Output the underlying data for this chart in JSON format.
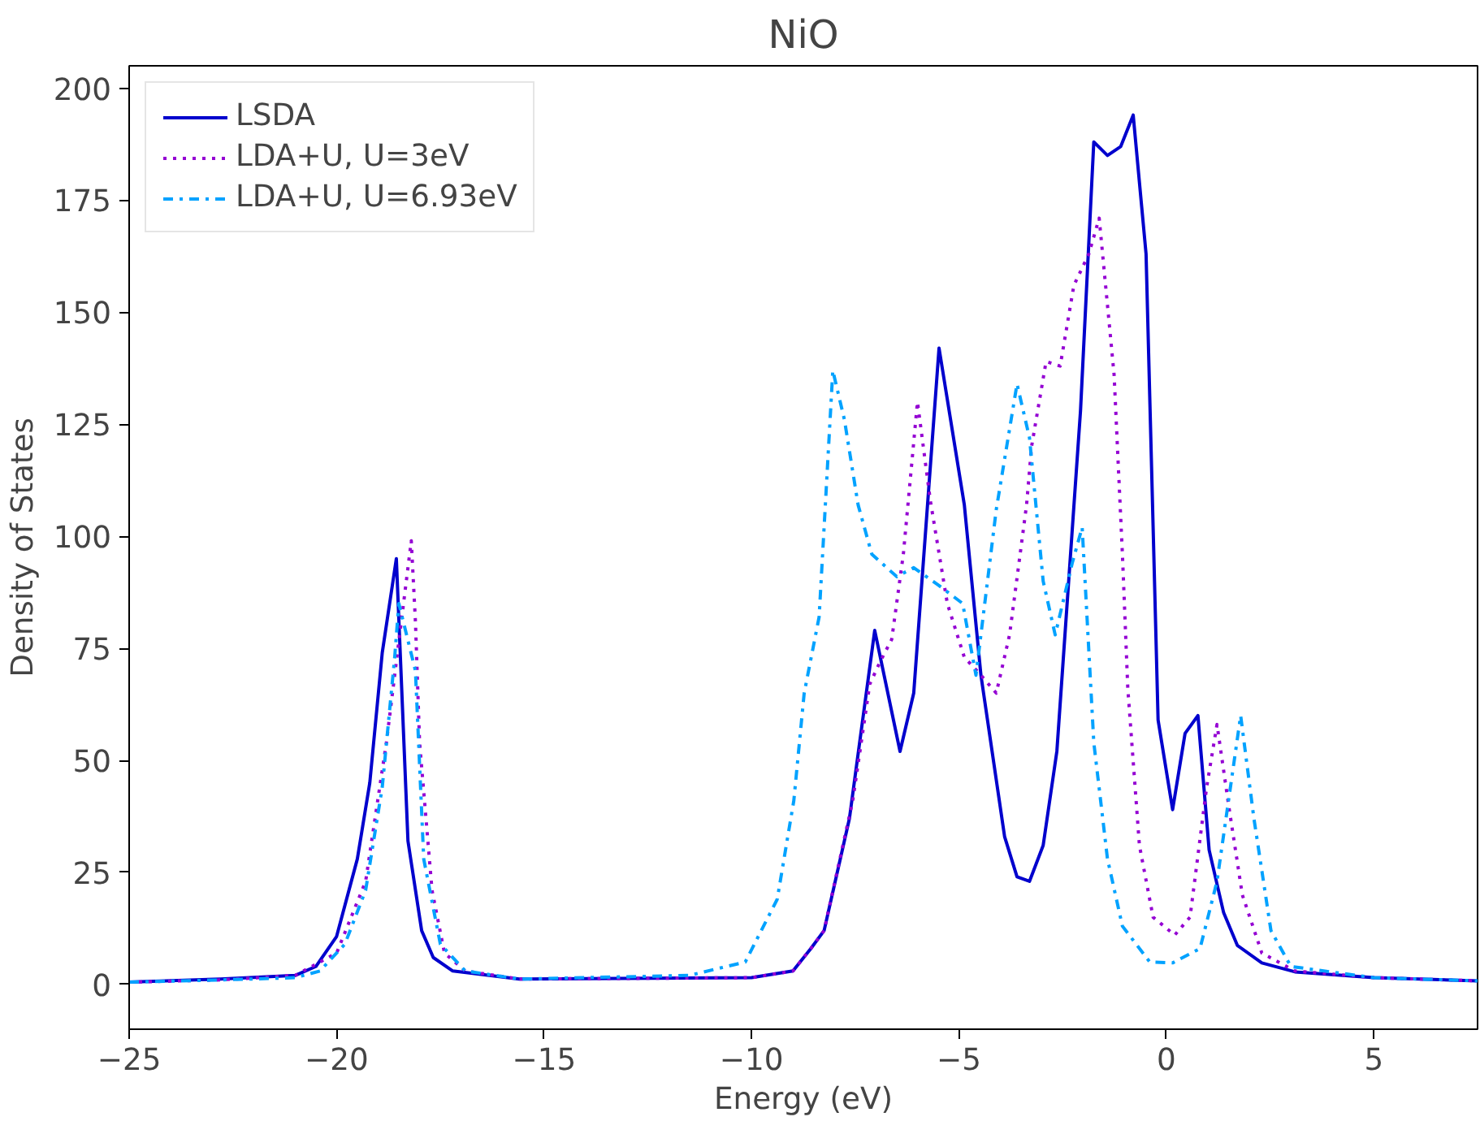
{
  "chart_data": {
    "type": "line",
    "title": "NiO",
    "xlabel": "Energy (eV)",
    "ylabel": "Density of States",
    "xlim": [
      -25,
      7.5
    ],
    "ylim": [
      -10,
      205
    ],
    "xticks": [
      -25,
      -20,
      -15,
      -10,
      -5,
      0,
      5
    ],
    "yticks": [
      0,
      25,
      50,
      75,
      100,
      125,
      150,
      175,
      200
    ],
    "grid": false,
    "legend": "top left",
    "marker": "none",
    "series": [
      {
        "name": "LSDA",
        "color": "#0000cd",
        "line_style": "solid",
        "x": [
          -25,
          -22.8,
          -21,
          -20.5,
          -20.0,
          -19.5,
          -19.2,
          -18.9,
          -18.56,
          -18.28,
          -17.95,
          -17.67,
          -17.2,
          -15.6,
          -10,
          -9,
          -8.57,
          -8.25,
          -7.64,
          -7.03,
          -6.42,
          -6.09,
          -5.48,
          -4.87,
          -4.47,
          -3.9,
          -3.6,
          -3.3,
          -2.97,
          -2.64,
          -2.07,
          -1.75,
          -1.42,
          -1.1,
          -0.8,
          -0.49,
          -0.2,
          0.15,
          0.45,
          0.76,
          1.03,
          1.38,
          1.71,
          2.3,
          3.1,
          5,
          7.5
        ],
        "values": [
          0.5,
          1.2,
          2,
          4,
          10.7,
          28,
          45,
          74,
          95,
          32,
          12,
          6,
          3,
          1.2,
          1.5,
          3,
          8,
          12,
          37,
          79,
          52,
          65,
          142,
          107,
          69,
          33,
          24,
          23,
          31,
          52,
          128,
          188,
          185,
          187,
          194,
          163,
          59,
          39,
          56,
          60,
          30,
          16,
          8.7,
          4.8,
          2.8,
          1.5,
          0.8
        ]
      },
      {
        "name": "LDA+U, U=3eV",
        "color": "#9400d3",
        "line_style": "dotted",
        "x": [
          -25,
          -22.8,
          -21,
          -20.0,
          -19.3,
          -18.8,
          -18.2,
          -18.1,
          -18.0,
          -17.7,
          -17.4,
          -16.9,
          -15.6,
          -10,
          -9,
          -8.57,
          -8.25,
          -7.56,
          -7.15,
          -6.9,
          -6.62,
          -6.34,
          -6.0,
          -5.69,
          -5.28,
          -4.87,
          -4.47,
          -4.1,
          -3.78,
          -3.37,
          -3.25,
          -2.9,
          -2.56,
          -2.23,
          -1.87,
          -1.62,
          -1.26,
          -1.06,
          -0.93,
          -0.65,
          -0.32,
          0.2,
          0.57,
          0.97,
          1.22,
          1.5,
          1.83,
          2.3,
          3.1,
          5,
          7.5
        ],
        "values": [
          0.5,
          1,
          2,
          7,
          23,
          54,
          99,
          81,
          54,
          21,
          7,
          3,
          1.2,
          1.5,
          3,
          8,
          12,
          41,
          67,
          72,
          77,
          96,
          130,
          108,
          85,
          73,
          69,
          65,
          78,
          107,
          120,
          139,
          138,
          156,
          163,
          171,
          136,
          96,
          66,
          31,
          15,
          11,
          15,
          44,
          58,
          40,
          20,
          7,
          3,
          1.5,
          0.8
        ]
      },
      {
        "name": "LDA+U, U=6.93eV",
        "color": "#00a2ff",
        "line_style": "dashdot",
        "x": [
          -25,
          -22.8,
          -21,
          -20.4,
          -19.8,
          -19.3,
          -18.9,
          -18.6,
          -18.5,
          -18.1,
          -17.9,
          -17.5,
          -16.9,
          -15.6,
          -11.5,
          -10.15,
          -9.38,
          -8.98,
          -8.73,
          -8.37,
          -8.04,
          -7.76,
          -7.43,
          -7.1,
          -6.5,
          -6.09,
          -5.48,
          -4.91,
          -4.59,
          -4.1,
          -3.6,
          -3.3,
          -2.97,
          -2.68,
          -2.27,
          -2.03,
          -1.75,
          -1.42,
          -1.06,
          -0.4,
          0.15,
          0.81,
          1.22,
          1.79,
          2.11,
          2.52,
          3.0,
          5,
          7.5
        ],
        "values": [
          0.5,
          1,
          1.5,
          3,
          9,
          21,
          44,
          73,
          85,
          70,
          28,
          9,
          3,
          1.2,
          2,
          5,
          19,
          41,
          65,
          82,
          137,
          126,
          107,
          96,
          91,
          93,
          89,
          85,
          69,
          106,
          134,
          122,
          90,
          78,
          94,
          102,
          54,
          28,
          13,
          5,
          4.8,
          8,
          23,
          60,
          37,
          12,
          4,
          1.5,
          0.8
        ]
      }
    ]
  }
}
